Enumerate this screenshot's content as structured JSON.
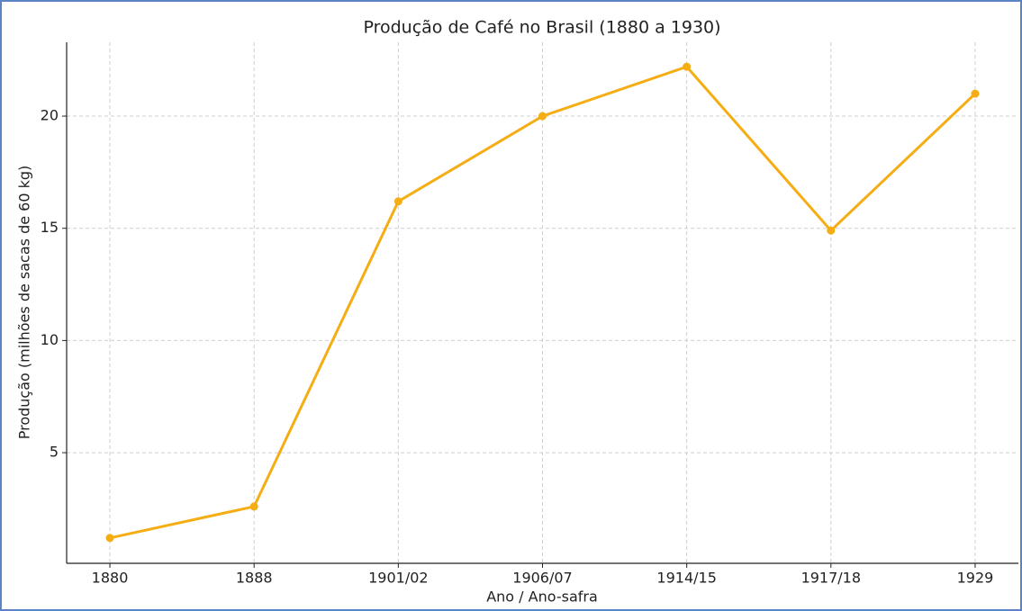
{
  "chart_data": {
    "type": "line",
    "title": "Produção de Café no Brasil (1880 a 1930)",
    "x_label": "Ano / Ano-safra",
    "y_label": "Produção (milhões de sacas de 60 kg)",
    "categories": [
      "1880",
      "1888",
      "1901/02",
      "1906/07",
      "1914/15",
      "1917/18",
      "1929"
    ],
    "series": [
      {
        "name": "Produção",
        "color": "#f5ad14",
        "values": [
          1.2,
          2.6,
          16.2,
          20,
          22.2,
          14.9,
          21
        ]
      }
    ],
    "ylim": [
      0.07,
      23.29
    ],
    "yticks": [
      5,
      10,
      15,
      20
    ],
    "grid": true
  }
}
